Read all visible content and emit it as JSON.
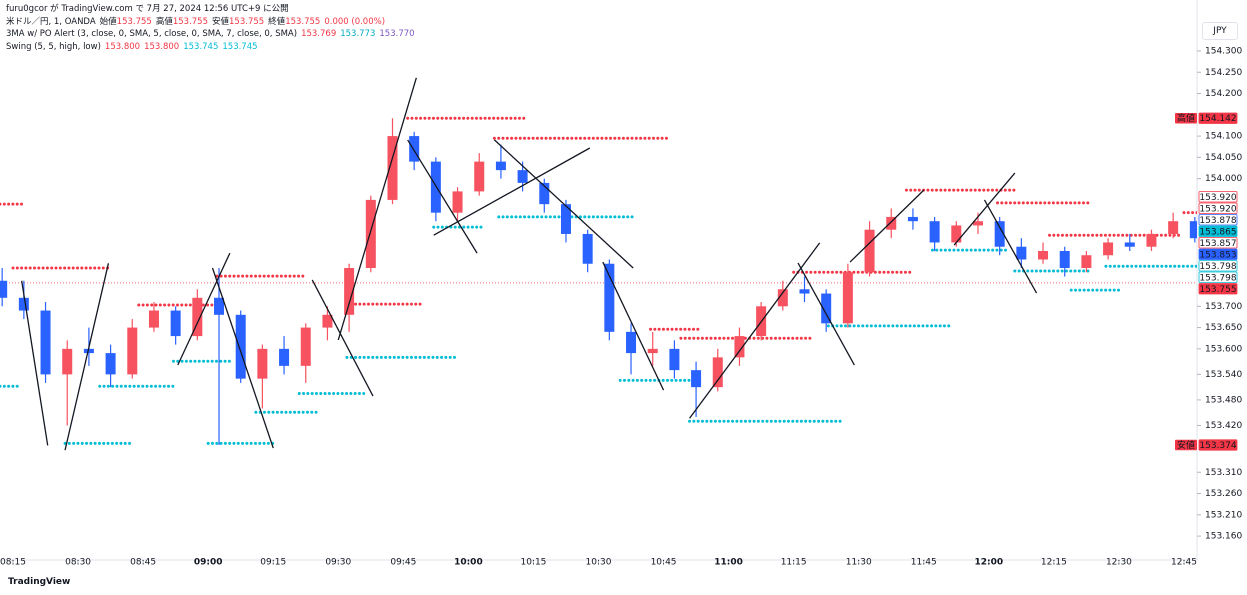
{
  "header": {
    "publisher": "furu0gcor が TradingView.com で 7月 27, 2024 12:56 UTC+9 に公開",
    "symbol": "米ドル／円, 1, OANDA",
    "ohlc": [
      {
        "label": "始値",
        "value": "153.755"
      },
      {
        "label": "高値",
        "value": "153.755"
      },
      {
        "label": "安値",
        "value": "153.755"
      },
      {
        "label": "終値",
        "value": "153.755"
      }
    ],
    "change": "0.000 (0.00%)",
    "indicators": [
      {
        "name": "3MA w/ PO Alert (3, close, 0, SMA, 5, close, 0, SMA, 7, close, 0, SMA)",
        "values": [
          {
            "text": "153.769",
            "color": "#f23645"
          },
          {
            "text": "153.773",
            "color": "#00acc1"
          },
          {
            "text": "153.770",
            "color": "#7e57c2"
          }
        ]
      },
      {
        "name": "Swing (5, 5, high, low)",
        "values": [
          {
            "text": "153.800",
            "color": "#f23645"
          },
          {
            "text": "153.800",
            "color": "#f23645"
          },
          {
            "text": "153.745",
            "color": "#00bcd4"
          },
          {
            "text": "153.745",
            "color": "#00bcd4"
          }
        ]
      }
    ],
    "currency": "JPY",
    "footer": "TradingView"
  },
  "chart_data": {
    "type": "candlestick",
    "x": [
      "08:10",
      "08:15",
      "08:20",
      "08:25",
      "08:30",
      "08:35",
      "08:40",
      "08:45",
      "08:50",
      "08:55",
      "09:00",
      "09:05",
      "09:10",
      "09:15",
      "09:20",
      "09:25",
      "09:30",
      "09:35",
      "09:40",
      "09:45",
      "09:50",
      "09:55",
      "10:00",
      "10:05",
      "10:10",
      "10:15",
      "10:20",
      "10:25",
      "10:30",
      "10:35",
      "10:40",
      "10:45",
      "10:50",
      "10:55",
      "11:00",
      "11:05",
      "11:10",
      "11:15",
      "11:20",
      "11:25",
      "11:30",
      "11:35",
      "11:40",
      "11:45",
      "11:50",
      "11:55",
      "12:00",
      "12:05",
      "12:10",
      "12:15",
      "12:20",
      "12:25",
      "12:30",
      "12:35",
      "12:40",
      "12:45"
    ],
    "open": [
      153.76,
      153.72,
      153.69,
      153.54,
      153.6,
      153.59,
      153.54,
      153.65,
      153.69,
      153.63,
      153.72,
      153.68,
      153.53,
      153.6,
      153.56,
      153.65,
      153.68,
      153.79,
      153.95,
      154.1,
      154.04,
      153.92,
      153.97,
      154.04,
      154.02,
      153.99,
      153.94,
      153.87,
      153.8,
      153.64,
      153.59,
      153.6,
      153.55,
      153.51,
      153.58,
      153.63,
      153.7,
      153.74,
      153.73,
      153.66,
      153.78,
      153.88,
      153.91,
      153.9,
      153.85,
      153.89,
      153.9,
      153.84,
      153.81,
      153.83,
      153.79,
      153.82,
      153.85,
      153.84,
      153.87,
      153.9
    ],
    "high": [
      153.79,
      153.76,
      153.71,
      153.62,
      153.65,
      153.61,
      153.67,
      153.71,
      153.7,
      153.74,
      153.79,
      153.69,
      153.61,
      153.63,
      153.66,
      153.7,
      153.8,
      153.96,
      154.142,
      154.11,
      154.05,
      153.98,
      154.06,
      154.08,
      154.04,
      154.0,
      153.95,
      153.88,
      153.81,
      153.66,
      153.64,
      153.62,
      153.57,
      153.6,
      153.65,
      153.71,
      153.76,
      153.77,
      153.74,
      153.8,
      153.9,
      153.93,
      153.93,
      153.91,
      153.9,
      153.92,
      153.91,
      153.86,
      153.85,
      153.84,
      153.83,
      153.86,
      153.87,
      153.88,
      153.92,
      153.91
    ],
    "low": [
      153.7,
      153.67,
      153.52,
      153.42,
      153.56,
      153.51,
      153.53,
      153.64,
      153.61,
      153.62,
      153.374,
      153.52,
      153.46,
      153.54,
      153.52,
      153.62,
      153.64,
      153.78,
      153.94,
      154.02,
      153.9,
      153.9,
      153.96,
      154.0,
      153.97,
      153.92,
      153.85,
      153.78,
      153.62,
      153.54,
      153.56,
      153.53,
      153.44,
      153.5,
      153.56,
      153.62,
      153.69,
      153.71,
      153.64,
      153.65,
      153.77,
      153.86,
      153.88,
      153.83,
      153.84,
      153.87,
      153.82,
      153.79,
      153.8,
      153.77,
      153.78,
      153.81,
      153.83,
      153.83,
      153.86,
      153.85
    ],
    "close": [
      153.72,
      153.69,
      153.54,
      153.6,
      153.59,
      153.54,
      153.65,
      153.69,
      153.63,
      153.72,
      153.68,
      153.53,
      153.6,
      153.56,
      153.65,
      153.68,
      153.79,
      153.95,
      154.1,
      154.04,
      153.92,
      153.97,
      154.04,
      154.02,
      153.99,
      153.94,
      153.87,
      153.8,
      153.64,
      153.59,
      153.6,
      153.55,
      153.51,
      153.58,
      153.63,
      153.7,
      153.74,
      153.73,
      153.66,
      153.78,
      153.88,
      153.91,
      153.9,
      153.85,
      153.89,
      153.9,
      153.84,
      153.81,
      153.83,
      153.79,
      153.82,
      153.85,
      153.84,
      153.87,
      153.9,
      153.86
    ],
    "up_color": "#f7525f",
    "down_color": "#2962ff",
    "xlim": [
      "08:12",
      "12:48"
    ],
    "xticks": [
      "08:15",
      "08:30",
      "08:45",
      "09:00",
      "09:15",
      "09:30",
      "09:45",
      "10:00",
      "10:15",
      "10:30",
      "10:45",
      "11:00",
      "11:15",
      "11:30",
      "11:45",
      "12:00",
      "12:15",
      "12:30",
      "12:45"
    ],
    "ylim": [
      153.132,
      154.401
    ],
    "yticks": [
      {
        "value": 154.3,
        "label": "154.300"
      },
      {
        "value": 154.25,
        "label": "154.250"
      },
      {
        "value": 154.2,
        "label": "154.200"
      },
      {
        "value": 154.1,
        "label": "154.100"
      },
      {
        "value": 154.05,
        "label": "154.050"
      },
      {
        "value": 154.0,
        "label": "154.000"
      },
      {
        "value": 153.7,
        "label": "153.700"
      },
      {
        "value": 153.65,
        "label": "153.650"
      },
      {
        "value": 153.6,
        "label": "153.600"
      },
      {
        "value": 153.54,
        "label": "153.540"
      },
      {
        "value": 153.48,
        "label": "153.480"
      },
      {
        "value": 153.42,
        "label": "153.420"
      },
      {
        "value": 153.31,
        "label": "153.310"
      },
      {
        "value": 153.26,
        "label": "153.260"
      },
      {
        "value": 153.21,
        "label": "153.210"
      },
      {
        "value": 153.16,
        "label": "153.160"
      }
    ],
    "grid": false,
    "swing_high": {
      "color": "#f23645",
      "levels": [
        {
          "value": 153.94,
          "from": "08:12",
          "to": "08:17"
        },
        {
          "value": 153.79,
          "from": "08:15",
          "to": "08:37"
        },
        {
          "value": 153.703,
          "from": "08:44",
          "to": "09:02"
        },
        {
          "value": 153.771,
          "from": "09:02",
          "to": "09:22"
        },
        {
          "value": 153.705,
          "from": "09:32",
          "to": "09:49"
        },
        {
          "value": 154.142,
          "from": "09:46",
          "to": "10:13"
        },
        {
          "value": 154.095,
          "from": "10:06",
          "to": "10:46"
        },
        {
          "value": 153.646,
          "from": "10:42",
          "to": "10:53"
        },
        {
          "value": 153.625,
          "from": "10:49",
          "to": "11:19"
        },
        {
          "value": 153.78,
          "from": "11:15",
          "to": "11:42"
        },
        {
          "value": 153.973,
          "from": "11:41",
          "to": "12:06"
        },
        {
          "value": 153.943,
          "from": "12:02",
          "to": "12:23"
        },
        {
          "value": 153.867,
          "from": "12:14",
          "to": "12:44"
        },
        {
          "value": 153.92,
          "from": "12:45",
          "to": "12:48"
        }
      ]
    },
    "swing_low": {
      "color": "#00bcd4",
      "levels": [
        {
          "value": 153.512,
          "from": "08:12",
          "to": "08:16"
        },
        {
          "value": 153.512,
          "from": "08:35",
          "to": "08:52"
        },
        {
          "value": 153.378,
          "from": "08:27",
          "to": "08:42"
        },
        {
          "value": 153.571,
          "from": "08:52",
          "to": "09:05"
        },
        {
          "value": 153.378,
          "from": "09:00",
          "to": "09:15"
        },
        {
          "value": 153.451,
          "from": "09:11",
          "to": "09:25"
        },
        {
          "value": 153.495,
          "from": "09:21",
          "to": "09:36"
        },
        {
          "value": 153.58,
          "from": "09:32",
          "to": "09:57"
        },
        {
          "value": 153.886,
          "from": "09:52",
          "to": "10:03"
        },
        {
          "value": 153.91,
          "from": "10:07",
          "to": "10:38"
        },
        {
          "value": 153.526,
          "from": "10:35",
          "to": "10:51"
        },
        {
          "value": 153.43,
          "from": "10:51",
          "to": "11:26"
        },
        {
          "value": 153.654,
          "from": "11:23",
          "to": "11:51"
        },
        {
          "value": 153.832,
          "from": "11:47",
          "to": "12:04"
        },
        {
          "value": 153.783,
          "from": "12:06",
          "to": "12:23"
        },
        {
          "value": 153.738,
          "from": "12:19",
          "to": "12:30"
        },
        {
          "value": 153.794,
          "from": "12:27",
          "to": "12:48"
        }
      ]
    },
    "trend_lines": [
      {
        "x": [
          "08:17",
          "08:23"
        ],
        "y": [
          153.76,
          153.373
        ]
      },
      {
        "x": [
          "08:27",
          "08:37"
        ],
        "y": [
          153.362,
          153.801
        ]
      },
      {
        "x": [
          "08:53",
          "09:05"
        ],
        "y": [
          153.562,
          153.825
        ]
      },
      {
        "x": [
          "09:01",
          "09:15"
        ],
        "y": [
          153.79,
          153.367
        ]
      },
      {
        "x": [
          "09:24",
          "09:38"
        ],
        "y": [
          153.762,
          153.489
        ]
      },
      {
        "x": [
          "09:30",
          "09:48"
        ],
        "y": [
          153.621,
          154.237
        ]
      },
      {
        "x": [
          "09:46",
          "10:02"
        ],
        "y": [
          154.091,
          153.825
        ]
      },
      {
        "x": [
          "09:52",
          "10:28"
        ],
        "y": [
          153.867,
          154.072
        ]
      },
      {
        "x": [
          "10:06",
          "10:38"
        ],
        "y": [
          154.091,
          153.79
        ]
      },
      {
        "x": [
          "10:31",
          "10:45"
        ],
        "y": [
          153.804,
          153.503
        ]
      },
      {
        "x": [
          "10:51",
          "11:21"
        ],
        "y": [
          153.437,
          153.849
        ]
      },
      {
        "x": [
          "11:16",
          "11:29"
        ],
        "y": [
          153.802,
          153.562
        ]
      },
      {
        "x": [
          "11:28",
          "11:45"
        ],
        "y": [
          153.804,
          153.973
        ]
      },
      {
        "x": [
          "11:52",
          "12:06"
        ],
        "y": [
          153.844,
          154.013
        ]
      },
      {
        "x": [
          "11:59",
          "12:11"
        ],
        "y": [
          153.95,
          153.731
        ]
      }
    ],
    "price_labels": [
      {
        "tag": "高値",
        "value": 154.142,
        "color": "#f23645",
        "style": "fill"
      },
      {
        "value": 153.92,
        "label": "153.920",
        "color": "#f23645",
        "style": "outline"
      },
      {
        "value": 153.92,
        "label": "153.920",
        "color": "#f23645",
        "style": "outline"
      },
      {
        "value": 153.878,
        "color": "#2962ff",
        "style": "outline"
      },
      {
        "value": 153.865,
        "color": "#00bcd4",
        "style": "fill"
      },
      {
        "value": 153.857,
        "color": "#f23645",
        "style": "outline"
      },
      {
        "value": 153.853,
        "color": "#2962ff",
        "style": "fill"
      },
      {
        "value": 153.798,
        "color": "#00bcd4",
        "style": "outline"
      },
      {
        "value": 153.798,
        "color": "#00bcd4",
        "style": "outline"
      },
      {
        "value": 153.755,
        "color": "#f23645",
        "style": "fill",
        "line": true
      },
      {
        "tag": "安値",
        "value": 153.374,
        "color": "#f23645",
        "style": "fill"
      }
    ]
  }
}
